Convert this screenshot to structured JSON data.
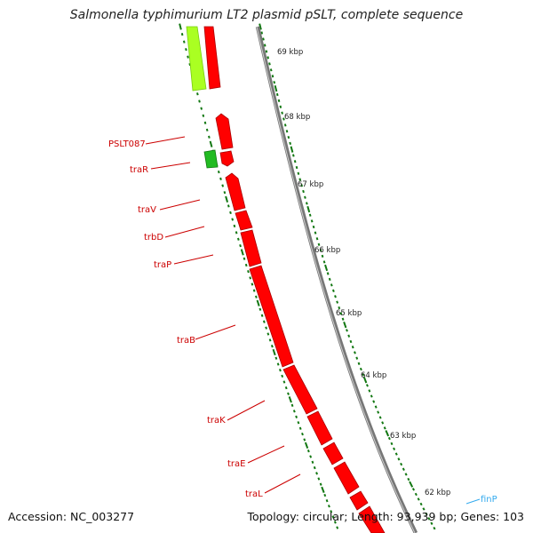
{
  "title": "Salmonella typhimurium LT2 plasmid pSLT, complete sequence",
  "accession": "Accession: NC_003277",
  "summary": "Topology: circular; Length: 93,939 bp; Genes: 103",
  "colors": {
    "gene": "#ff0000",
    "gene_highlight": "#aaff22",
    "gene_green": "#22bb22",
    "backbone": "#888888",
    "tick": "#117711",
    "label": "#cc0000",
    "finP_label": "#33aaee"
  },
  "ruler_labels": [
    "69 kbp",
    "68 kbp",
    "67 kbp",
    "66 kbp",
    "65 kbp",
    "64 kbp",
    "63 kbp",
    "62 kbp"
  ],
  "gene_labels": [
    "PSLT087",
    "traR",
    "traV",
    "trbD",
    "traP",
    "traB",
    "traK",
    "traE",
    "traL",
    "finP"
  ]
}
